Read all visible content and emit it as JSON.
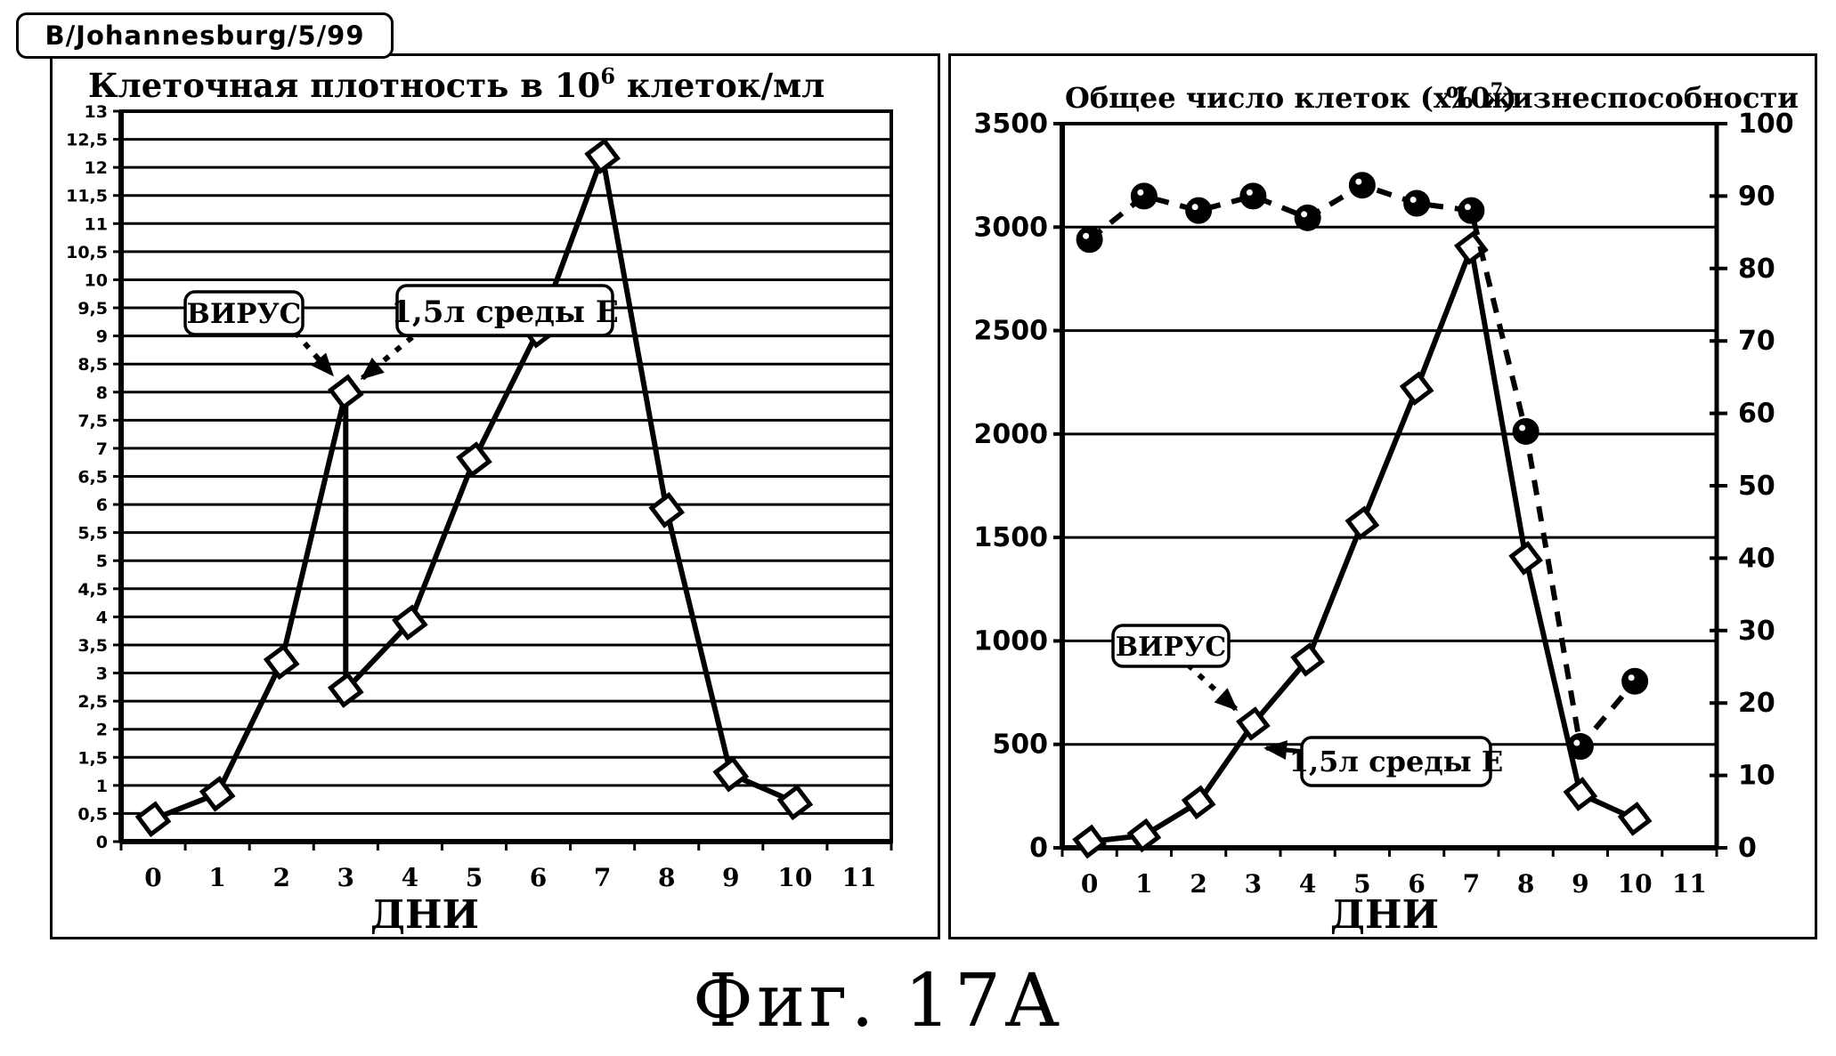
{
  "header": {
    "label": "B/Johannesburg/5/99"
  },
  "caption": "Фиг. 17А",
  "chart_data": [
    {
      "type": "line",
      "panel": "left",
      "title": "Клеточная плотность в 10⁶ клеток/мл",
      "title_parts": {
        "base": "Клеточная плотность в 10",
        "sup": "6",
        "rest": " клеток/мл"
      },
      "xlabel": "ДНИ",
      "x_ticks": [
        "0",
        "1",
        "2",
        "3",
        "4",
        "5",
        "6",
        "7",
        "8",
        "9",
        "10",
        "11"
      ],
      "ylim": [
        0,
        13
      ],
      "y_step": 0.5,
      "y_decimal_separator": ",",
      "grid": true,
      "legend_position": "none",
      "series": [
        {
          "name": "cell-density-10e6-per-ml",
          "marker": "diamond",
          "line": "solid",
          "points": [
            [
              0,
              0.4
            ],
            [
              1,
              0.85
            ],
            [
              2,
              3.2
            ],
            [
              3,
              8.0
            ],
            [
              3,
              2.7
            ],
            [
              4,
              3.9
            ],
            [
              5,
              6.8
            ],
            [
              6,
              9.1
            ],
            [
              7,
              12.2
            ],
            [
              8,
              5.9
            ],
            [
              9,
              1.2
            ],
            [
              10,
              0.7
            ]
          ],
          "note": "day-3 has two values (8.0 before and 2.7 after medium addition); day-6 marker is mostly hidden behind the label box"
        }
      ],
      "annotations": [
        {
          "id": "virus-label",
          "text": "ВИРУС",
          "points_to": "day 3, 8.0"
        },
        {
          "id": "medium-label",
          "text": "1,5л среды Е",
          "points_to": "day 3, 8.0"
        }
      ]
    },
    {
      "type": "line",
      "panel": "right",
      "title_left": "Общее число клеток (x10⁷)",
      "title_left_parts": {
        "base": "Общее число клеток (x10",
        "sup": "7",
        "rest": ")"
      },
      "title_right": "% жизнеспособности",
      "xlabel": "ДНИ",
      "x_ticks": [
        "0",
        "1",
        "2",
        "3",
        "4",
        "5",
        "6",
        "7",
        "8",
        "9",
        "10",
        "11"
      ],
      "y_left": {
        "min": 0,
        "max": 3500,
        "step": 500
      },
      "y_right": {
        "min": 0,
        "max": 100,
        "step": 10
      },
      "grid": true,
      "legend_position": "none",
      "series": [
        {
          "name": "total-cells-x10e7",
          "axis": "left",
          "marker": "diamond",
          "line": "solid",
          "points": [
            [
              0,
              30
            ],
            [
              1,
              60
            ],
            [
              2,
              220
            ],
            [
              3,
              600
            ],
            [
              4,
              910
            ],
            [
              5,
              1570
            ],
            [
              6,
              2220
            ],
            [
              7,
              2900
            ],
            [
              8,
              1400
            ],
            [
              9,
              260
            ],
            [
              10,
              140
            ]
          ]
        },
        {
          "name": "viability-percent",
          "axis": "right",
          "marker": "circle",
          "line": "dashed",
          "points": [
            [
              0,
              84
            ],
            [
              1,
              90
            ],
            [
              2,
              88
            ],
            [
              3,
              90
            ],
            [
              4,
              87
            ],
            [
              5,
              91.5
            ],
            [
              6,
              89
            ],
            [
              7,
              88
            ],
            [
              8,
              57.5
            ],
            [
              9,
              14
            ],
            [
              10,
              23
            ]
          ]
        }
      ],
      "annotations": [
        {
          "id": "virus-label",
          "text": "ВИРУС",
          "points_to": "day 3 of total cells"
        },
        {
          "id": "medium-label",
          "text": "1,5л среды Е",
          "points_to": "day 3 of total cells"
        }
      ]
    }
  ]
}
